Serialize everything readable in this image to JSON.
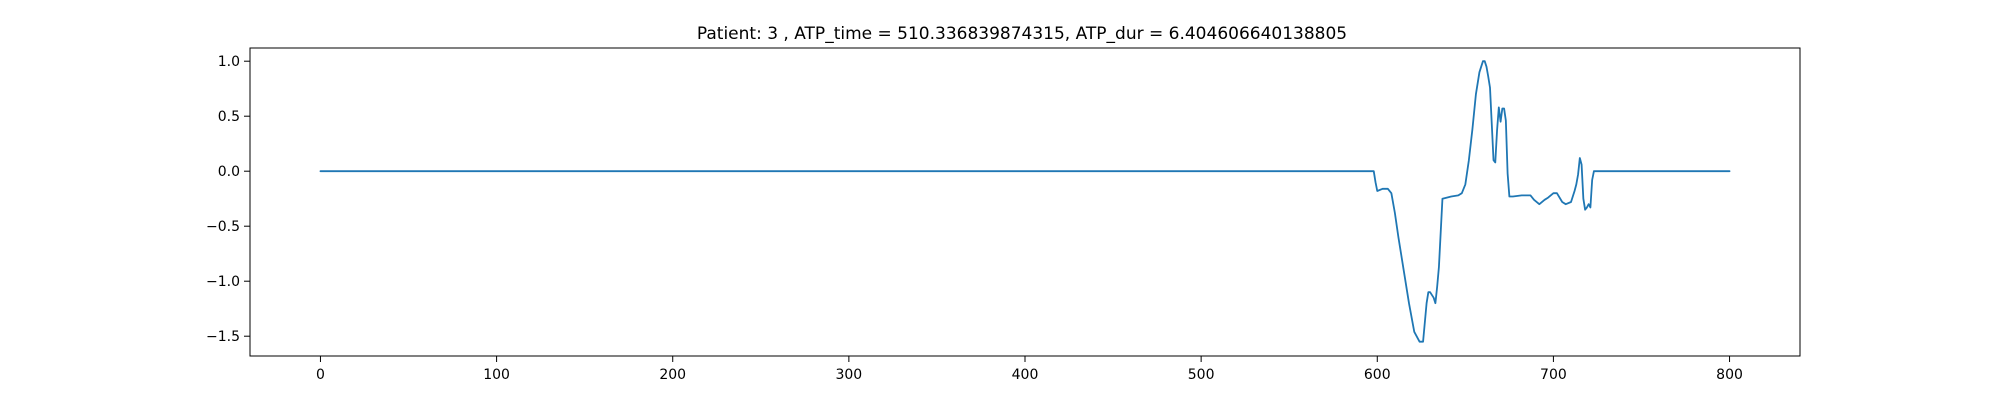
{
  "chart_data": {
    "type": "line",
    "title": "Patient: 3 , ATP_time = 510.336839874315, ATP_dur = 6.404606640138805",
    "xlabel": "",
    "ylabel": "",
    "xlim": [
      -40,
      840
    ],
    "ylim": [
      -1.68,
      1.12
    ],
    "grid": false,
    "xticks": [
      0,
      100,
      200,
      300,
      400,
      500,
      600,
      700,
      800
    ],
    "xtick_labels": [
      "0",
      "100",
      "200",
      "300",
      "400",
      "500",
      "600",
      "700",
      "800"
    ],
    "yticks": [
      1.0,
      0.5,
      0.0,
      -0.5,
      -1.0,
      -1.5
    ],
    "ytick_labels": [
      "1.0",
      "0.5",
      "0.0",
      "−0.5",
      "−1.0",
      "−1.5"
    ],
    "series": [
      {
        "color": "#1f77b4",
        "x": [
          0,
          598,
          599,
          600,
          603,
          606,
          608,
          610,
          612,
          615,
          618,
          621,
          624,
          626,
          628,
          629,
          630,
          632,
          633,
          634,
          635,
          637,
          642,
          646,
          648,
          650,
          652,
          654,
          656,
          658,
          660,
          661,
          662,
          663,
          664,
          666,
          667,
          668,
          669,
          670,
          671,
          672,
          673,
          674,
          675,
          677,
          682,
          687,
          689,
          692,
          695,
          697,
          700,
          702,
          705,
          707,
          710,
          712,
          713,
          714,
          715,
          716,
          717,
          718,
          719,
          720,
          721,
          722,
          723,
          725,
          800
        ],
        "y": [
          0.0,
          0.0,
          -0.1,
          -0.18,
          -0.16,
          -0.16,
          -0.2,
          -0.38,
          -0.6,
          -0.9,
          -1.2,
          -1.46,
          -1.55,
          -1.55,
          -1.2,
          -1.1,
          -1.1,
          -1.15,
          -1.2,
          -1.05,
          -0.87,
          -0.25,
          -0.23,
          -0.22,
          -0.2,
          -0.12,
          0.1,
          0.38,
          0.7,
          0.9,
          1.0,
          1.0,
          0.95,
          0.86,
          0.76,
          0.1,
          0.08,
          0.37,
          0.58,
          0.45,
          0.57,
          0.57,
          0.46,
          -0.02,
          -0.23,
          -0.23,
          -0.22,
          -0.22,
          -0.26,
          -0.3,
          -0.26,
          -0.24,
          -0.2,
          -0.2,
          -0.28,
          -0.3,
          -0.28,
          -0.18,
          -0.12,
          -0.03,
          0.12,
          0.06,
          -0.25,
          -0.35,
          -0.33,
          -0.3,
          -0.33,
          -0.08,
          0.0,
          0.0,
          0.0
        ]
      }
    ]
  }
}
